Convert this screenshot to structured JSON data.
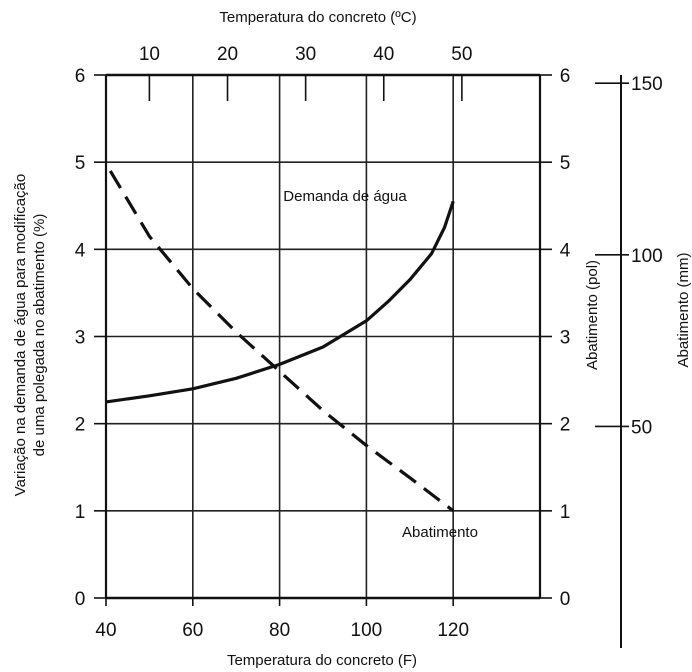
{
  "chart_data": {
    "type": "line",
    "title": "",
    "xlabel": "Temperatura do concreto (F)",
    "x2label": "Temperatura do concreto (ºC)",
    "ylabel": "Variação na demanda de água para modificação de uma polegada no abatimento (%)",
    "ylabel_lines": [
      "Variação na demanda de água para modificação",
      "de uma polegada no abatimento (%)"
    ],
    "y2label": "Abatimento (pol)",
    "y3label": "Abatimento (mm)",
    "xlim": [
      40,
      140
    ],
    "ylim": [
      0,
      6
    ],
    "y2lim": [
      0,
      6
    ],
    "y3lim_mm": [
      0,
      152.4
    ],
    "grid": true,
    "x_ticks": [
      40,
      60,
      80,
      100,
      120
    ],
    "x_tick_labels": [
      "40",
      "60",
      "80",
      "100",
      "120"
    ],
    "x2_ticks_c": [
      10,
      20,
      30,
      40,
      50
    ],
    "x2_tick_labels": [
      "10",
      "20",
      "30",
      "40",
      "50"
    ],
    "y_ticks": [
      0,
      1,
      2,
      3,
      4,
      5,
      6
    ],
    "y_tick_labels": [
      "0",
      "1",
      "2",
      "3",
      "4",
      "5",
      "6"
    ],
    "y2_ticks": [
      0,
      1,
      2,
      3,
      4,
      5,
      6
    ],
    "y2_tick_labels": [
      "0",
      "1",
      "2",
      "3",
      "4",
      "5",
      "6"
    ],
    "y3_ticks_mm": [
      50,
      100,
      150
    ],
    "y3_tick_labels": [
      "50",
      "100",
      "150"
    ],
    "series": [
      {
        "name": "Demanda de água",
        "style": "solid",
        "x": [
          40,
          50,
          60,
          70,
          80,
          90,
          100,
          105,
          110,
          115,
          118,
          120
        ],
        "y": [
          2.25,
          2.32,
          2.4,
          2.52,
          2.68,
          2.88,
          3.18,
          3.4,
          3.65,
          3.95,
          4.25,
          4.55
        ]
      },
      {
        "name": "Abatimento",
        "style": "dashed",
        "x": [
          41,
          50,
          60,
          70,
          80,
          90,
          100,
          110,
          120
        ],
        "y": [
          4.9,
          4.15,
          3.55,
          3.05,
          2.6,
          2.15,
          1.75,
          1.38,
          1.0
        ]
      }
    ],
    "annotations": [
      {
        "text": "Demanda de água",
        "x": 95,
        "y": 4.6
      },
      {
        "text": "Abatimento",
        "x": 112,
        "y": 0.73
      }
    ]
  }
}
